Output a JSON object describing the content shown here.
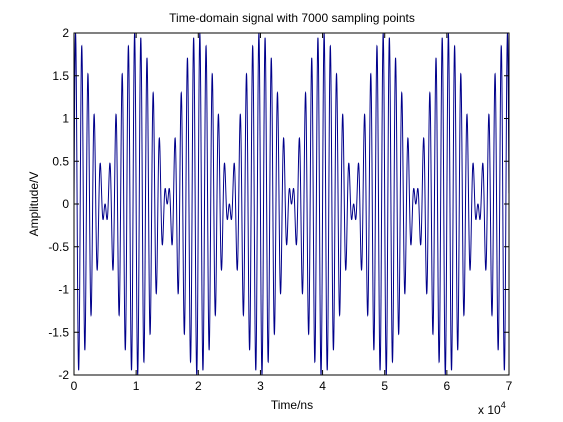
{
  "chart_data": {
    "type": "line",
    "title": "Time-domain signal with 7000 sampling points",
    "xlabel": "Time/ns",
    "ylabel": "Amplitude/V",
    "x_exponent_label": "x 10",
    "x_exponent_power": "4",
    "xlim": [
      0,
      70000
    ],
    "ylim": [
      -2,
      2
    ],
    "xticks": [
      0,
      10000,
      20000,
      30000,
      40000,
      50000,
      60000,
      70000
    ],
    "xtick_labels": [
      "0",
      "1",
      "2",
      "3",
      "4",
      "5",
      "6",
      "7"
    ],
    "yticks": [
      -2,
      -1.5,
      -1,
      -0.5,
      0,
      0.5,
      1,
      1.5,
      2
    ],
    "ytick_labels": [
      "-2",
      "-1.5",
      "-1",
      "-0.5",
      "0",
      "0.5",
      "1",
      "1.5",
      "2"
    ],
    "grid": false,
    "series": [
      {
        "color": "#00008b",
        "sampling_points": 7000,
        "sample_interval_ns": 10,
        "model": "beat of two equal-amplitude sinusoids: y = 2*sin(2*pi*f*t)*cos(2*pi*fm*t)",
        "carrier_period_ns": 1000,
        "envelope_period_ns": 20000
      }
    ]
  }
}
